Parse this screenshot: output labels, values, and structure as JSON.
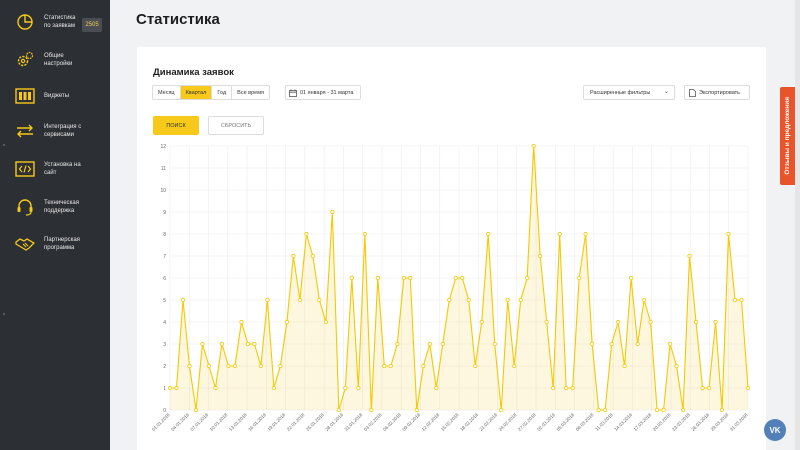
{
  "sidebar": {
    "items": [
      {
        "label": "Статистика\nпо заявкам",
        "icon": "pie-chart-icon",
        "badge": "2505"
      },
      {
        "label": "Общие\nнастройки",
        "icon": "gears-icon"
      },
      {
        "label": "Виджеты",
        "icon": "widget-grid-icon"
      },
      {
        "label": "Интеграция с\nсервисами",
        "icon": "arrows-exchange-icon"
      },
      {
        "label": "Установка на\nсайт",
        "icon": "code-icon"
      },
      {
        "label": "Техническая\nподдержка",
        "icon": "headset-icon"
      },
      {
        "label": "Партнерская\nпрограмма",
        "icon": "handshake-icon"
      }
    ]
  },
  "page": {
    "title": "Статистика"
  },
  "card": {
    "title": "Динамика заявок",
    "period_tabs": [
      "Месяц",
      "Квартал",
      "Год",
      "Все время"
    ],
    "active_tab": "Квартал",
    "date_range": "01 января - 31 марта",
    "filters_label": "Расширенные фильтры",
    "export_label": "Экспортировать",
    "search_label": "ПОИСК",
    "reset_label": "СБРОСИТЬ"
  },
  "feedback_tab": "Отзывы и предложения",
  "vk_label": "VK",
  "colors": {
    "accent": "#f7c91a",
    "line": "#f5c800",
    "sidebar": "#2c2f33",
    "feedback": "#e9542b",
    "vk": "#5181b8"
  },
  "chart_data": {
    "type": "area",
    "title": "",
    "xlabel": "",
    "ylabel": "",
    "ylim": [
      0,
      12
    ],
    "yticks": [
      0,
      1,
      2,
      3,
      4,
      5,
      6,
      7,
      8,
      9,
      10,
      11,
      12
    ],
    "grid": true,
    "x_tick_labels": [
      "01.01.2018",
      "04.01.2018",
      "07.01.2018",
      "10.01.2018",
      "13.01.2018",
      "16.01.2018",
      "19.01.2018",
      "22.01.2018",
      "25.01.2018",
      "28.01.2018",
      "31.01.2018",
      "03.02.2018",
      "06.02.2018",
      "09.02.2018",
      "12.02.2018",
      "15.02.2018",
      "18.02.2018",
      "21.02.2018",
      "24.02.2018",
      "27.02.2018",
      "02.03.2018",
      "05.03.2018",
      "08.03.2018",
      "11.03.2018",
      "14.03.2018",
      "17.03.2018",
      "20.03.2018",
      "23.03.2018",
      "26.03.2018",
      "29.03.2018",
      "31.03.2018"
    ],
    "series": [
      {
        "values": [
          1,
          1,
          5,
          2,
          0,
          3,
          2,
          1,
          3,
          2,
          2,
          4,
          3,
          3,
          2,
          5,
          1,
          2,
          4,
          7,
          5,
          8,
          7,
          5,
          4,
          9,
          0,
          1,
          6,
          1,
          8,
          0,
          6,
          2,
          2,
          3,
          6,
          6,
          0,
          2,
          3,
          1,
          3,
          5,
          6,
          6,
          5,
          2,
          4,
          8,
          3,
          0,
          5,
          2,
          5,
          6,
          12,
          7,
          4,
          1,
          8,
          1,
          1,
          6,
          8,
          3,
          0,
          0,
          3,
          4,
          2,
          6,
          3,
          5,
          4,
          0,
          0,
          3,
          2,
          0,
          7,
          4,
          1,
          1,
          4,
          0,
          8,
          5,
          5,
          1
        ]
      }
    ]
  }
}
